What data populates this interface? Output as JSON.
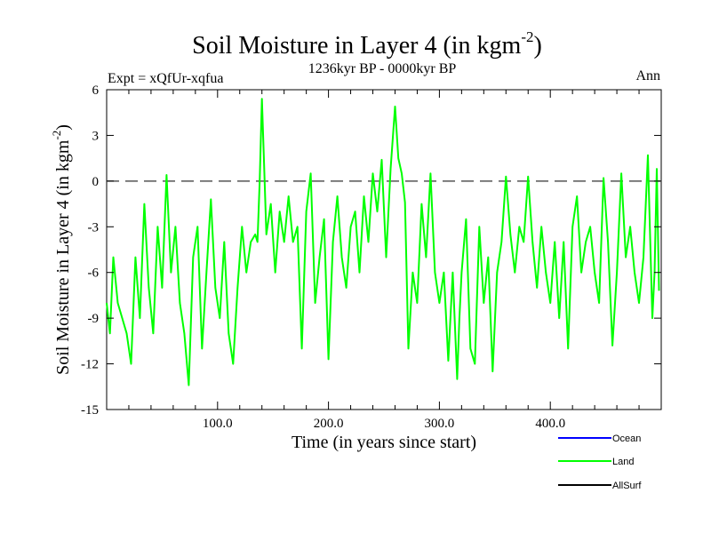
{
  "chart_data": {
    "type": "line",
    "title": "Soil Moisture in Layer 4 (in kgm",
    "title_sup": "-2",
    "title_close": ")",
    "subtitle": "1236kyr BP - 0000kyr BP",
    "expt_label": "Expt = xQfUr-xqfua",
    "season_label": "Ann",
    "xlabel": "Time (in years since start)",
    "ylabel": "Soil Moisture in Layer 4 (in kgm",
    "ylabel_sup": "-2",
    "ylabel_close": ")",
    "xlim": [
      0,
      500
    ],
    "ylim": [
      -15,
      6
    ],
    "xticks": [
      100,
      200,
      300,
      400
    ],
    "xtick_labels": [
      "100.0",
      "200.0",
      "300.0",
      "400.0"
    ],
    "yticks": [
      6,
      3,
      0,
      -3,
      -6,
      -9,
      -12,
      -15
    ],
    "ytick_labels": [
      "6",
      "3",
      "0",
      "-3",
      "-6",
      "-9",
      "-12",
      "-15"
    ],
    "reference_line": 0,
    "legend": [
      {
        "name": "Ocean",
        "color": "#0000ff"
      },
      {
        "name": "Land",
        "color": "#00ff00"
      },
      {
        "name": "AllSurf",
        "color": "#000000"
      }
    ],
    "series": [
      {
        "name": "Land",
        "color": "#00ff00",
        "x": [
          0,
          3,
          6,
          10,
          14,
          18,
          22,
          26,
          30,
          34,
          38,
          42,
          46,
          50,
          54,
          58,
          62,
          66,
          70,
          74,
          78,
          82,
          86,
          90,
          94,
          98,
          102,
          106,
          110,
          114,
          118,
          122,
          126,
          130,
          134,
          136,
          138,
          140,
          142,
          144,
          148,
          152,
          156,
          160,
          164,
          168,
          172,
          176,
          180,
          184,
          188,
          192,
          196,
          200,
          204,
          208,
          212,
          216,
          220,
          224,
          228,
          232,
          236,
          240,
          244,
          248,
          252,
          256,
          260,
          263,
          266,
          269,
          272,
          276,
          280,
          284,
          288,
          292,
          296,
          300,
          304,
          308,
          312,
          316,
          318,
          320,
          324,
          328,
          332,
          336,
          340,
          344,
          348,
          352,
          356,
          360,
          364,
          368,
          372,
          376,
          380,
          384,
          388,
          392,
          396,
          400,
          404,
          408,
          412,
          416,
          420,
          424,
          428,
          432,
          436,
          440,
          444,
          448,
          452,
          456,
          460,
          464,
          468,
          472,
          476,
          480,
          484,
          488,
          492,
          494,
          496,
          498
        ],
        "values": [
          -8,
          -10,
          -5,
          -8,
          -9,
          -10,
          -12,
          -5,
          -9,
          -1.5,
          -7,
          -10,
          -3,
          -7,
          0.4,
          -6,
          -3,
          -8,
          -10,
          -13.4,
          -5,
          -3,
          -11,
          -6,
          -1.2,
          -7,
          -9,
          -4,
          -10,
          -12,
          -7,
          -3,
          -6,
          -4,
          -3.5,
          -4,
          0,
          5.4,
          1,
          -3.5,
          -1.5,
          -6,
          -2,
          -4,
          -1,
          -4,
          -3,
          -11,
          -2,
          0.5,
          -8,
          -5,
          -2.5,
          -11.7,
          -4,
          -1,
          -5,
          -7,
          -3,
          -2,
          -6,
          -1,
          -4,
          0.5,
          -2,
          1.4,
          -5,
          0.8,
          4.9,
          1.5,
          0.5,
          -1.4,
          -11,
          -6,
          -8,
          -1.5,
          -5,
          0.5,
          -6,
          -8,
          -6,
          -11.8,
          -6,
          -13,
          -9,
          -6,
          -2.5,
          -11,
          -12,
          -3,
          -8,
          -5,
          -12.5,
          -6,
          -4,
          0.3,
          -3.5,
          -6,
          -3,
          -4,
          0.3,
          -4,
          -7,
          -3,
          -6,
          -8,
          -4,
          -9,
          -4,
          -11,
          -3,
          -1,
          -6,
          -4,
          -3,
          -6,
          -8,
          0.2,
          -4,
          -10.8,
          -6,
          0.5,
          -5,
          -3,
          -6,
          -8,
          -5,
          1.7,
          -9,
          -6,
          0.8,
          -7.2
        ]
      }
    ]
  }
}
